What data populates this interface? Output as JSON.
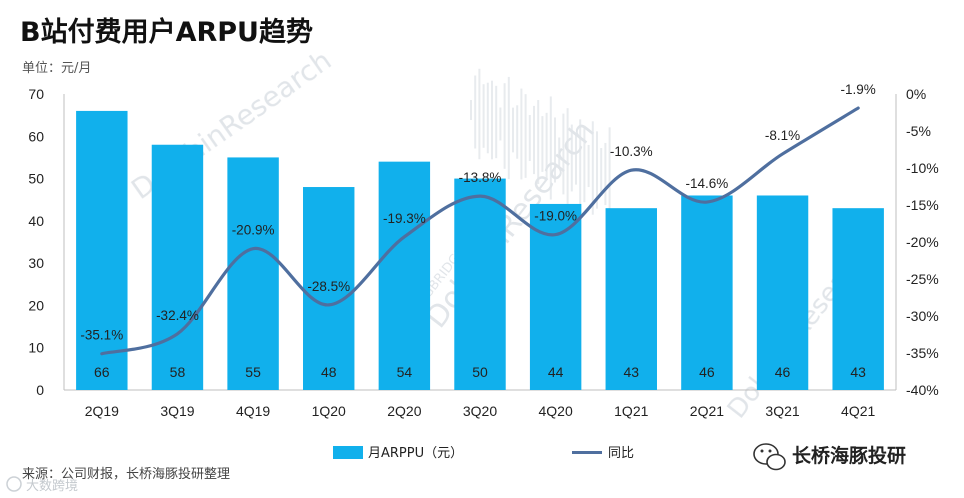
{
  "page": {
    "title": "B站付费用户ARPU趋势",
    "unit_label": "单位：元/月",
    "source": "来源：公司财报，长桥海豚投研整理",
    "brand": "长桥海豚投研",
    "watermark_main": "DolphinResearch",
    "watermark_sub": "LONGBRIDGE",
    "corner_mark": "大数跨境"
  },
  "colors": {
    "bar": "#11b0ec",
    "line": "#4f6f9f",
    "axis": "#bfbfbf"
  },
  "chart_data": {
    "type": "bar",
    "title": "B站付费用户ARPU趋势",
    "categories": [
      "2Q19",
      "3Q19",
      "4Q19",
      "1Q20",
      "2Q20",
      "3Q20",
      "4Q20",
      "1Q21",
      "2Q21",
      "3Q21",
      "4Q21"
    ],
    "ylim": [
      0,
      70
    ],
    "yticks": [
      0,
      10,
      20,
      30,
      40,
      50,
      60,
      70
    ],
    "y2lim": [
      -40,
      0
    ],
    "y2ticks": [
      0,
      -5,
      -10,
      -15,
      -20,
      -25,
      -30,
      -35,
      -40
    ],
    "series": [
      {
        "name": "月ARPPU（元）",
        "type": "bar",
        "axis": "left",
        "values": [
          66,
          58,
          55,
          48,
          54,
          50,
          44,
          43,
          46,
          46,
          43
        ],
        "labels": [
          "66",
          "58",
          "55",
          "48",
          "54",
          "50",
          "44",
          "43",
          "46",
          "46",
          "43"
        ]
      },
      {
        "name": "同比",
        "type": "line",
        "axis": "right",
        "values": [
          -35.1,
          -32.4,
          -20.9,
          -28.5,
          -19.3,
          -13.8,
          -19.0,
          -10.3,
          -14.6,
          -8.1,
          -1.9
        ],
        "labels": [
          "-35.1%",
          "-32.4%",
          "-20.9%",
          "-28.5%",
          "-19.3%",
          "-13.8%",
          "-19.0%",
          "-10.3%",
          "-14.6%",
          "-8.1%",
          "-1.9%"
        ]
      }
    ],
    "legend": {
      "position": "bottom",
      "bar_label": "月ARPPU（元）",
      "line_label": "同比"
    }
  }
}
